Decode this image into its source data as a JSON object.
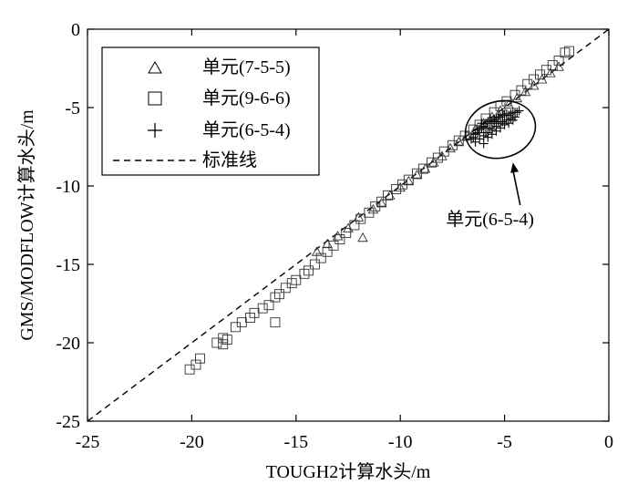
{
  "chart_data": {
    "type": "scatter",
    "xlabel": "TOUGH2计算水头/m",
    "ylabel": "GMS/MODFLOW计算水头/m",
    "xlim": [
      -25,
      0
    ],
    "ylim": [
      -25,
      0
    ],
    "xticks": [
      -25,
      -20,
      -15,
      -10,
      -5,
      0
    ],
    "yticks": [
      -25,
      -20,
      -15,
      -10,
      -5,
      0
    ],
    "xtick_labels": [
      "-25",
      "-20",
      "-15",
      "-10",
      "-5",
      "0"
    ],
    "ytick_labels": [
      "-25",
      "-20",
      "-15",
      "-10",
      "-5",
      "0"
    ],
    "grid": false,
    "legend_position": "top-left",
    "legend": [
      {
        "marker": "triangle",
        "label": "单元(7-5-5)"
      },
      {
        "marker": "square",
        "label": "单元(9-6-6)"
      },
      {
        "marker": "plus",
        "label": "单元(6-5-4)"
      },
      {
        "marker": "dashed-line",
        "label": "标准线"
      }
    ],
    "series": [
      {
        "name": "单元(7-5-5)",
        "marker": "triangle",
        "x": [
          -12.0,
          -11.8,
          -11.3,
          -10.9,
          -10.5,
          -10.0,
          -9.6,
          -9.2,
          -8.8,
          -8.4,
          -8.0,
          -7.6,
          -7.2,
          -6.8,
          -6.4,
          -6.0,
          -5.6,
          -5.2,
          -4.8,
          -4.4,
          -4.0,
          -3.6,
          -3.2,
          -2.8,
          -2.4,
          -14.0,
          -13.5,
          -13.0,
          -12.5
        ],
        "y": [
          -12.0,
          -13.3,
          -11.5,
          -11.1,
          -10.6,
          -10.1,
          -9.7,
          -9.3,
          -8.9,
          -8.5,
          -8.1,
          -7.6,
          -7.2,
          -6.8,
          -6.4,
          -6.0,
          -5.6,
          -5.2,
          -4.8,
          -4.4,
          -4.0,
          -3.6,
          -3.2,
          -2.8,
          -2.4,
          -14.2,
          -13.7,
          -13.2,
          -12.7
        ]
      },
      {
        "name": "单元(9-6-6)",
        "marker": "square",
        "x": [
          -20.1,
          -19.8,
          -19.6,
          -18.8,
          -18.5,
          -18.3,
          -17.9,
          -17.6,
          -17.2,
          -17.0,
          -16.6,
          -16.3,
          -16.0,
          -15.8,
          -15.5,
          -15.2,
          -15.0,
          -14.6,
          -14.4,
          -14.1,
          -13.8,
          -13.5,
          -13.2,
          -12.9,
          -12.6,
          -12.2,
          -11.9,
          -11.5,
          -11.2,
          -10.9,
          -10.6,
          -10.2,
          -9.9,
          -9.6,
          -9.2,
          -8.9,
          -8.5,
          -8.2,
          -7.9,
          -7.5,
          -7.2,
          -6.9,
          -6.5,
          -6.2,
          -5.9,
          -5.5,
          -5.2,
          -4.9,
          -4.5,
          -4.2,
          -3.9,
          -3.6,
          -3.3,
          -3.0,
          -2.7,
          -2.4,
          -2.1,
          -1.9,
          -16.0,
          -18.5
        ],
        "y": [
          -21.7,
          -21.4,
          -21.0,
          -20.0,
          -19.7,
          -19.8,
          -19.0,
          -18.7,
          -18.4,
          -18.1,
          -17.8,
          -17.6,
          -17.1,
          -16.9,
          -16.5,
          -16.2,
          -16.0,
          -15.6,
          -15.4,
          -15.0,
          -14.6,
          -14.2,
          -13.8,
          -13.4,
          -13.0,
          -12.5,
          -12.1,
          -11.7,
          -11.3,
          -11.0,
          -10.6,
          -10.2,
          -9.9,
          -9.6,
          -9.2,
          -8.9,
          -8.5,
          -8.2,
          -7.8,
          -7.4,
          -7.1,
          -6.8,
          -6.4,
          -6.1,
          -5.7,
          -5.3,
          -4.9,
          -4.6,
          -4.2,
          -3.9,
          -3.5,
          -3.2,
          -2.9,
          -2.6,
          -2.3,
          -2.0,
          -1.5,
          -1.4,
          -18.7,
          -20.1
        ]
      },
      {
        "name": "单元(6-5-4)",
        "marker": "plus",
        "x": [
          -6.6,
          -6.5,
          -6.4,
          -6.3,
          -6.2,
          -6.1,
          -6.0,
          -5.9,
          -5.8,
          -5.7,
          -5.6,
          -5.5,
          -5.4,
          -5.3,
          -5.2,
          -5.1,
          -5.0,
          -4.9,
          -4.8,
          -4.7,
          -4.6,
          -4.5,
          -4.4,
          -4.3,
          -6.4,
          -6.2,
          -6.0,
          -5.8,
          -5.6,
          -5.4,
          -5.2,
          -5.0,
          -4.8,
          -4.6,
          -6.3,
          -6.1,
          -5.9,
          -5.7,
          -5.5,
          -5.3,
          -5.1,
          -4.9,
          -4.7,
          -4.5,
          -6.0,
          -5.8,
          -5.6,
          -5.4,
          -5.2
        ],
        "y": [
          -7.0,
          -6.9,
          -6.7,
          -6.6,
          -6.4,
          -6.3,
          -6.2,
          -6.0,
          -5.9,
          -5.8,
          -5.9,
          -5.8,
          -5.7,
          -5.6,
          -5.6,
          -5.5,
          -5.5,
          -5.4,
          -5.5,
          -5.4,
          -5.3,
          -5.3,
          -5.3,
          -5.2,
          -7.2,
          -7.0,
          -6.8,
          -6.6,
          -6.4,
          -6.5,
          -6.3,
          -6.1,
          -6.0,
          -5.8,
          -6.4,
          -6.0,
          -6.6,
          -6.3,
          -6.0,
          -5.9,
          -5.9,
          -5.8,
          -5.7,
          -5.6,
          -7.3,
          -6.9,
          -6.7,
          -6.2,
          -6.0
        ]
      },
      {
        "name": "标准线",
        "type": "line",
        "style": "dashed",
        "x": [
          -25,
          0
        ],
        "y": [
          -25,
          0
        ]
      }
    ],
    "annotations": [
      {
        "text": "单元(6-5-4)",
        "type": "ellipse-callout",
        "ellipse_center": [
          -5.2,
          -6.4
        ],
        "ellipse_radius": [
          1.7,
          1.8
        ],
        "label_anchor": [
          -5.7,
          -12.5
        ],
        "arrow_to": [
          -4.6,
          -8.5
        ]
      }
    ]
  }
}
